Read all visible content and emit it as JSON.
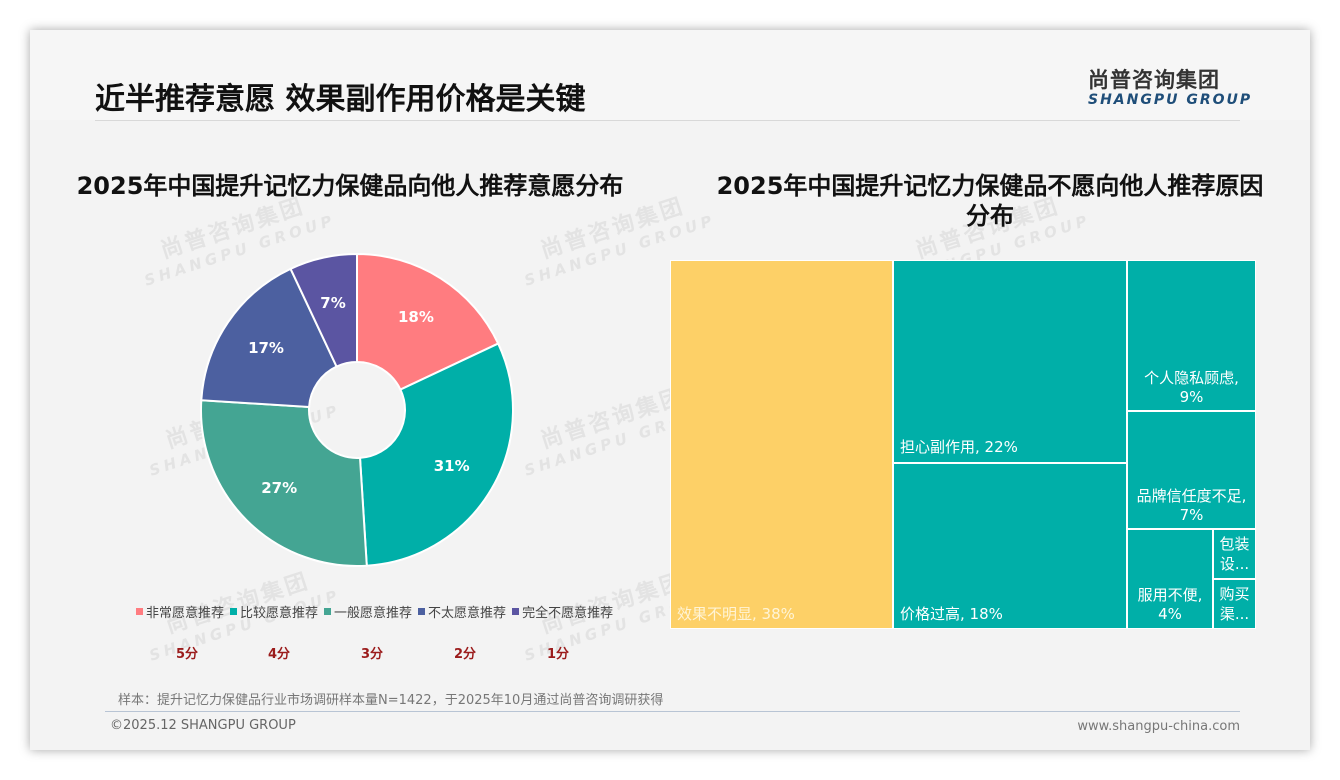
{
  "header": {
    "title": "近半推荐意愿 效果副作用价格是关键",
    "logo_cn": "尚普咨询集团",
    "logo_en": "SHANGPU GROUP"
  },
  "watermark": {
    "cn": "尚普咨询集团",
    "en": "SHANGPU GROUP"
  },
  "left_chart": {
    "title": "2025年中国提升记忆力保健品向他人推荐意愿分布",
    "slices": [
      {
        "label": "非常愿意推荐",
        "value": 18,
        "display": "18%",
        "color": "#FF7C80",
        "score": "5分"
      },
      {
        "label": "比较愿意推荐",
        "value": 31,
        "display": "31%",
        "color": "#00AFA8",
        "score": "4分"
      },
      {
        "label": "一般愿意推荐",
        "value": 27,
        "display": "27%",
        "color": "#44A593",
        "score": "3分"
      },
      {
        "label": "不太愿意推荐",
        "value": 17,
        "display": "17%",
        "color": "#4C60A0",
        "score": "2分"
      },
      {
        "label": "完全不愿意推荐",
        "value": 7,
        "display": "7%",
        "color": "#5B55A2",
        "score": "1分"
      }
    ]
  },
  "right_chart": {
    "title_line1": "2025年中国提升记忆力保健品不愿向他人推荐原因",
    "title_line2": "分布",
    "cells": [
      {
        "label": "效果不明显, 38%"
      },
      {
        "label": "担心副作用, 22%"
      },
      {
        "label": "价格过高, 18%"
      },
      {
        "label_line1": "个人隐私顾虑,",
        "label_line2": "9%"
      },
      {
        "label_line1": "品牌信任度不足,",
        "label_line2": "7%"
      },
      {
        "label_line1": "服用不便,",
        "label_line2": "4%"
      },
      {
        "label_line1": "包装",
        "label_line2": "设..."
      },
      {
        "label_line1": "购买",
        "label_line2": "渠..."
      }
    ]
  },
  "footer": {
    "sample_note": "样本：提升记忆力保健品行业市场调研样本量N=1422，于2025年10月通过尚普咨询调研获得",
    "copyright": "©2025.12 SHANGPU GROUP",
    "website": "www.shangpu-china.com"
  },
  "chart_data": [
    {
      "type": "pie",
      "title": "2025年中国提升记忆力保健品向他人推荐意愿分布",
      "categories": [
        "非常愿意推荐",
        "比较愿意推荐",
        "一般愿意推荐",
        "不太愿意推荐",
        "完全不愿意推荐"
      ],
      "values": [
        18,
        31,
        27,
        17,
        7
      ],
      "unit": "%",
      "donut": true,
      "legend_position": "bottom",
      "annotations": [
        "5分",
        "4分",
        "3分",
        "2分",
        "1分"
      ],
      "colors": [
        "#FF7C80",
        "#00AFA8",
        "#44A593",
        "#4C60A0",
        "#5B55A2"
      ]
    },
    {
      "type": "treemap",
      "title": "2025年中国提升记忆力保健品不愿向他人推荐原因分布",
      "categories": [
        "效果不明显",
        "担心副作用",
        "价格过高",
        "个人隐私顾虑",
        "品牌信任度不足",
        "服用不便",
        "包装设计",
        "购买渠道"
      ],
      "values": [
        38,
        22,
        18,
        9,
        7,
        4,
        1,
        1
      ],
      "unit": "%",
      "colors": [
        "#FDD067",
        "#00AFA8",
        "#00AFA8",
        "#00AFA8",
        "#00AFA8",
        "#00AFA8",
        "#00AFA8",
        "#00AFA8"
      ]
    }
  ]
}
